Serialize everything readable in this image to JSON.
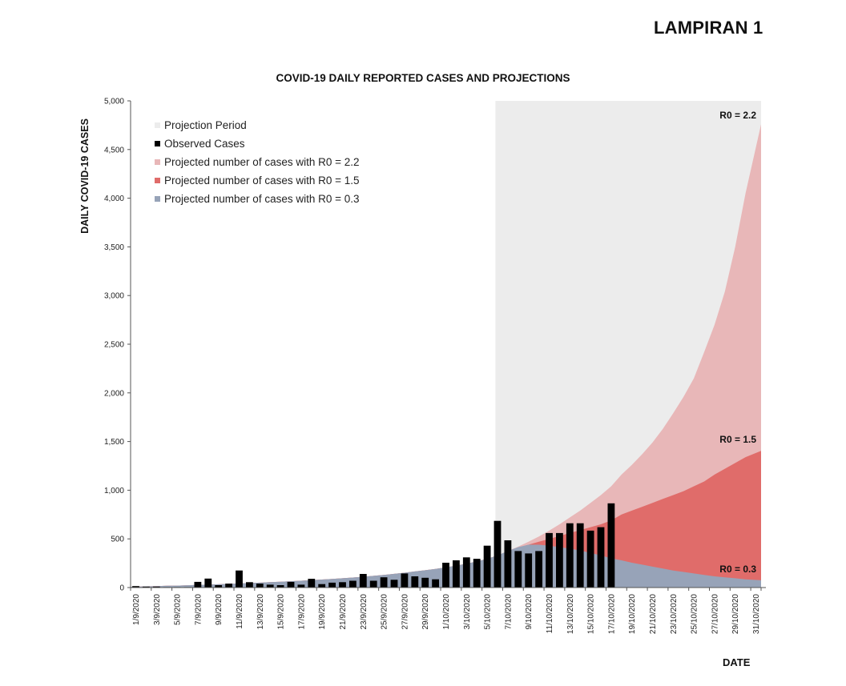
{
  "header": {
    "attachment_label": "LAMPIRAN 1"
  },
  "chart_data": {
    "type": "bar",
    "title": "COVID-19 DAILY REPORTED CASES AND PROJECTIONS",
    "xlabel": "DATE",
    "ylabel": "DAILY COVID-19 CASES",
    "ylim": [
      0,
      5000
    ],
    "yticks": [
      0,
      500,
      1000,
      1500,
      2000,
      2500,
      3000,
      3500,
      4000,
      4500,
      5000
    ],
    "ytick_labels": [
      "0",
      "500",
      "1,000",
      "1,500",
      "2,000",
      "2,500",
      "3,000",
      "3,500",
      "4,000",
      "4,500",
      "5,000"
    ],
    "grid": false,
    "legend_position": "top-left",
    "dates": [
      "1/9/2020",
      "2/9/2020",
      "3/9/2020",
      "4/9/2020",
      "5/9/2020",
      "6/9/2020",
      "7/9/2020",
      "8/9/2020",
      "9/9/2020",
      "10/9/2020",
      "11/9/2020",
      "12/9/2020",
      "13/9/2020",
      "14/9/2020",
      "15/9/2020",
      "16/9/2020",
      "17/9/2020",
      "18/9/2020",
      "19/9/2020",
      "20/9/2020",
      "21/9/2020",
      "22/9/2020",
      "23/9/2020",
      "24/9/2020",
      "25/9/2020",
      "26/9/2020",
      "27/9/2020",
      "28/9/2020",
      "29/9/2020",
      "30/9/2020",
      "1/10/2020",
      "2/10/2020",
      "3/10/2020",
      "4/10/2020",
      "5/10/2020",
      "6/10/2020",
      "7/10/2020",
      "8/10/2020",
      "9/10/2020",
      "10/10/2020",
      "11/10/2020",
      "12/10/2020",
      "13/10/2020",
      "14/10/2020",
      "15/10/2020",
      "16/10/2020",
      "17/10/2020",
      "18/10/2020",
      "19/10/2020",
      "20/10/2020",
      "21/10/2020",
      "22/10/2020",
      "23/10/2020",
      "24/10/2020",
      "25/10/2020",
      "26/10/2020",
      "27/10/2020",
      "28/10/2020",
      "29/10/2020",
      "30/10/2020",
      "31/10/2020"
    ],
    "xtick_labels": [
      "1/9/2020",
      "3/9/2020",
      "5/9/2020",
      "7/9/2020",
      "9/9/2020",
      "11/9/2020",
      "13/9/2020",
      "15/9/2020",
      "17/9/2020",
      "19/9/2020",
      "21/9/2020",
      "23/9/2020",
      "25/9/2020",
      "27/9/2020",
      "29/9/2020",
      "1/10/2020",
      "3/10/2020",
      "5/10/2020",
      "7/10/2020",
      "9/10/2020",
      "11/10/2020",
      "13/10/2020",
      "15/10/2020",
      "17/10/2020",
      "19/10/2020",
      "21/10/2020",
      "23/10/2020",
      "25/10/2020",
      "27/10/2020",
      "29/10/2020",
      "31/10/2020"
    ],
    "projection_period": {
      "label": "Projection Period",
      "start": "6/10/2020",
      "end": "31/10/2020",
      "color": "#ececec"
    },
    "series": [
      {
        "name": "Observed Cases",
        "type": "bar",
        "color": "#000000",
        "values": [
          15,
          10,
          10,
          5,
          5,
          5,
          58,
          92,
          25,
          40,
          175,
          55,
          40,
          30,
          25,
          58,
          30,
          90,
          35,
          50,
          55,
          70,
          140,
          70,
          105,
          80,
          145,
          115,
          100,
          85,
          255,
          280,
          310,
          295,
          430,
          685,
          485,
          375,
          350,
          375,
          560,
          560,
          660,
          660,
          585,
          620,
          865
        ]
      },
      {
        "name": "Projected number of cases with R0 = 2.2",
        "type": "area",
        "color": "#e8b7b8",
        "end_label": "R0 = 2.2",
        "values": [
          8,
          12,
          15,
          18,
          20,
          24,
          27,
          30,
          34,
          38,
          42,
          46,
          50,
          55,
          60,
          65,
          70,
          76,
          82,
          88,
          95,
          103,
          111,
          120,
          130,
          141,
          152,
          165,
          178,
          192,
          208,
          225,
          245,
          268,
          295,
          330,
          375,
          420,
          470,
          525,
          585,
          650,
          720,
          790,
          870,
          950,
          1040,
          1160,
          1260,
          1370,
          1490,
          1630,
          1790,
          1960,
          2150,
          2420,
          2700,
          3040,
          3500,
          4050,
          4760
        ]
      },
      {
        "name": "Projected number of cases with R0 = 1.5",
        "type": "area",
        "color": "#e06c6a",
        "end_label": "R0 = 1.5",
        "values": [
          8,
          12,
          15,
          18,
          20,
          24,
          27,
          30,
          34,
          38,
          42,
          46,
          50,
          55,
          60,
          65,
          70,
          76,
          82,
          88,
          95,
          103,
          111,
          120,
          130,
          141,
          152,
          165,
          178,
          192,
          208,
          225,
          245,
          268,
          295,
          330,
          370,
          410,
          440,
          470,
          500,
          530,
          560,
          590,
          620,
          650,
          690,
          750,
          790,
          830,
          870,
          910,
          950,
          990,
          1040,
          1090,
          1160,
          1220,
          1280,
          1340,
          1405
        ]
      },
      {
        "name": "Projected number of cases with R0 = 0.3",
        "type": "area",
        "color": "#97a3b8",
        "end_label": "R0 = 0.3",
        "values": [
          8,
          12,
          15,
          18,
          20,
          24,
          27,
          30,
          34,
          38,
          42,
          46,
          50,
          55,
          60,
          65,
          70,
          76,
          82,
          88,
          95,
          103,
          111,
          120,
          130,
          141,
          152,
          165,
          178,
          192,
          208,
          225,
          245,
          268,
          295,
          330,
          375,
          415,
          440,
          440,
          430,
          415,
          400,
          380,
          355,
          330,
          300,
          280,
          255,
          235,
          215,
          195,
          175,
          160,
          145,
          130,
          115,
          105,
          95,
          85,
          75
        ]
      }
    ]
  },
  "legend": {
    "items": [
      {
        "label": "Projection Period",
        "color": "#ececec"
      },
      {
        "label": "Observed Cases",
        "color": "#000000"
      },
      {
        "label": "Projected number of cases with R0 = 2.2",
        "color": "#e8b7b8"
      },
      {
        "label": "Projected number of cases with R0 = 1.5",
        "color": "#e06c6a"
      },
      {
        "label": "Projected number of cases with R0 = 0.3",
        "color": "#97a3b8"
      }
    ]
  }
}
